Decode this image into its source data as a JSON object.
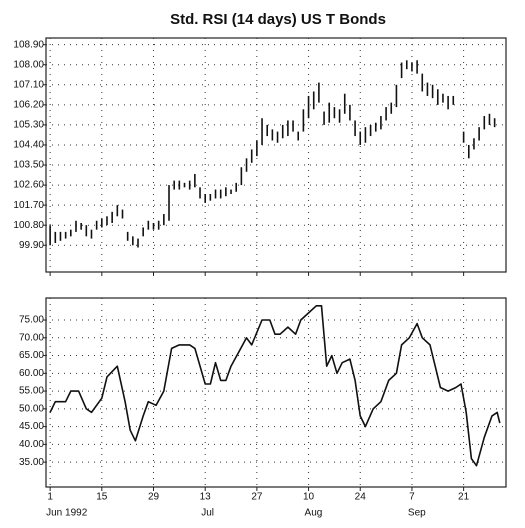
{
  "chart_data": [
    {
      "type": "ohlc",
      "title": "Std. RSI (14 days) US T Bonds",
      "grid": true,
      "color": "#111111",
      "xlim": [
        -0.8,
        88.2
      ],
      "xticks": [
        0,
        10,
        20,
        30,
        40,
        50,
        60,
        70,
        80
      ],
      "ylim": [
        98.7,
        109.2
      ],
      "yticks": [
        {
          "value": 99.9,
          "label": "99.90"
        },
        {
          "value": 100.8,
          "label": "100.80"
        },
        {
          "value": 101.7,
          "label": "101.70"
        },
        {
          "value": 102.6,
          "label": "102.60"
        },
        {
          "value": 103.5,
          "label": "103.50"
        },
        {
          "value": 104.4,
          "label": "104.40"
        },
        {
          "value": 105.3,
          "label": "105.30"
        },
        {
          "value": 106.2,
          "label": "106.20"
        },
        {
          "value": 107.1,
          "label": "107.10"
        },
        {
          "value": 108,
          "label": "108.00"
        },
        {
          "value": 108.9,
          "label": "108.90"
        }
      ],
      "x": [
        0,
        1,
        2,
        3,
        4,
        5,
        6,
        7,
        8,
        9,
        10,
        11,
        12,
        13,
        14,
        15,
        16,
        17,
        18,
        19,
        20,
        21,
        22,
        23,
        24,
        25,
        26,
        27,
        28,
        29,
        30,
        31,
        32,
        33,
        34,
        35,
        36,
        37,
        38,
        39,
        40,
        41,
        42,
        43,
        44,
        45,
        46,
        47,
        48,
        49,
        50,
        51,
        52,
        53,
        54,
        55,
        56,
        57,
        58,
        59,
        60,
        61,
        62,
        63,
        64,
        65,
        66,
        67,
        68,
        69,
        70,
        71,
        72,
        73,
        74,
        75,
        76,
        77,
        78,
        80,
        81,
        82,
        83,
        84,
        85,
        86
      ],
      "low": [
        99.9,
        100.0,
        100.1,
        100.2,
        100.3,
        100.5,
        100.6,
        100.3,
        100.2,
        100.6,
        100.7,
        100.8,
        100.9,
        101.2,
        101.1,
        100.1,
        99.9,
        99.8,
        100.3,
        100.6,
        100.6,
        100.6,
        100.8,
        101.0,
        102.4,
        102.4,
        102.5,
        102.4,
        102.5,
        102.0,
        101.8,
        101.9,
        102.0,
        102.0,
        102.1,
        102.2,
        102.3,
        102.6,
        103.2,
        103.6,
        103.9,
        104.4,
        104.8,
        104.6,
        104.5,
        104.7,
        104.8,
        105.0,
        104.6,
        105.0,
        105.6,
        106.0,
        106.3,
        105.3,
        105.4,
        105.6,
        105.4,
        105.8,
        105.5,
        104.8,
        104.4,
        104.5,
        104.8,
        105.0,
        105.1,
        105.5,
        105.8,
        106.1,
        107.4,
        107.8,
        107.7,
        107.6,
        106.8,
        106.6,
        106.5,
        106.2,
        106.3,
        106.0,
        106.2,
        104.5,
        103.8,
        104.2,
        104.6,
        105.1,
        105.3,
        105.2
      ],
      "high": [
        100.8,
        100.5,
        100.5,
        100.5,
        100.6,
        101.0,
        100.9,
        100.8,
        100.6,
        101.0,
        101.1,
        101.2,
        101.4,
        101.7,
        101.5,
        100.5,
        100.3,
        100.2,
        100.7,
        101.0,
        100.9,
        101.0,
        101.3,
        102.6,
        102.8,
        102.8,
        102.7,
        102.8,
        103.1,
        102.5,
        102.2,
        102.2,
        102.4,
        102.4,
        102.5,
        102.4,
        102.7,
        103.4,
        103.8,
        104.2,
        104.6,
        105.6,
        105.3,
        105.1,
        105.0,
        105.3,
        105.5,
        105.5,
        105.0,
        106.0,
        106.6,
        106.8,
        107.2,
        105.9,
        106.3,
        106.1,
        106.0,
        106.7,
        106.2,
        105.5,
        105.0,
        105.2,
        105.3,
        105.4,
        105.7,
        106.1,
        106.3,
        107.1,
        108.1,
        108.2,
        108.1,
        108.2,
        107.6,
        107.2,
        107.1,
        106.9,
        106.7,
        106.6,
        106.6,
        105.0,
        104.4,
        104.7,
        105.2,
        105.7,
        105.8,
        105.6
      ]
    },
    {
      "type": "line",
      "grid": true,
      "color": "#111111",
      "xlim": [
        -0.8,
        88.2
      ],
      "xticks": [
        {
          "value": 0,
          "label": "1",
          "month": "Jun 1992"
        },
        {
          "value": 10,
          "label": "15"
        },
        {
          "value": 20,
          "label": "29"
        },
        {
          "value": 30,
          "label": "13",
          "month": "Jul"
        },
        {
          "value": 40,
          "label": "27"
        },
        {
          "value": 50,
          "label": "10",
          "month": "Aug"
        },
        {
          "value": 60,
          "label": "24"
        },
        {
          "value": 70,
          "label": "7",
          "month": "Sep"
        },
        {
          "value": 80,
          "label": "21"
        }
      ],
      "ylim": [
        28,
        81.2
      ],
      "yticks": [
        {
          "value": 35,
          "label": "35.00"
        },
        {
          "value": 40,
          "label": "40.00"
        },
        {
          "value": 45,
          "label": "45.00"
        },
        {
          "value": 50,
          "label": "50.00"
        },
        {
          "value": 55,
          "label": "55.00"
        },
        {
          "value": 60,
          "label": "60.00"
        },
        {
          "value": 65,
          "label": "65.00"
        },
        {
          "value": 70,
          "label": "70.00"
        },
        {
          "value": 75,
          "label": "75.00"
        }
      ],
      "x": [
        0,
        1,
        3,
        4,
        5.5,
        7,
        8,
        10,
        11,
        13,
        14.5,
        15.5,
        16.5,
        18,
        19,
        20.5,
        22,
        23.5,
        25,
        27,
        28,
        30,
        31,
        32,
        33,
        34,
        35,
        36.5,
        38,
        39,
        41,
        42.5,
        43.5,
        44.5,
        46,
        47.5,
        48.5,
        50,
        51.5,
        52.5,
        53.5,
        54.5,
        55.5,
        56.5,
        58,
        59,
        60,
        61,
        62.5,
        64,
        65.5,
        67,
        68,
        69.5,
        71,
        72,
        73.5,
        74.5,
        75.5,
        77,
        78.5,
        79.5,
        80.5,
        81.5,
        82.5,
        84,
        85.5,
        86.5,
        87
      ],
      "values": [
        49,
        52,
        52,
        55,
        55,
        50,
        49,
        53,
        59,
        62,
        52,
        44,
        41,
        48,
        52,
        51,
        55,
        67,
        68,
        68,
        67,
        57,
        57,
        63,
        58,
        58,
        62,
        66,
        70,
        68,
        75,
        75,
        71,
        71,
        73,
        71,
        75,
        77,
        79,
        79,
        62,
        65,
        60,
        63,
        64,
        58,
        48,
        45,
        50,
        52,
        58,
        60,
        68,
        70,
        74,
        70,
        68,
        62,
        56,
        55,
        56,
        57,
        49,
        36,
        34,
        42,
        48,
        49,
        46
      ]
    }
  ]
}
